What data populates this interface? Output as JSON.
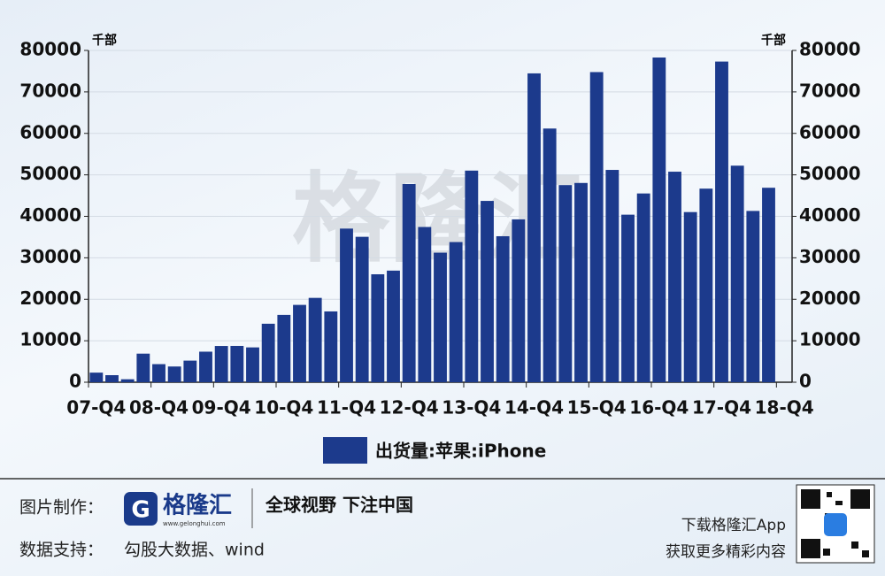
{
  "chart_data": {
    "type": "bar",
    "watermark": "格隆汇",
    "unit_left": "千部",
    "unit_right": "千部",
    "categories": [
      "07-Q4",
      null,
      null,
      null,
      "08-Q4",
      null,
      null,
      null,
      "09-Q4",
      null,
      null,
      null,
      "10-Q4",
      null,
      null,
      null,
      "11-Q4",
      null,
      null,
      null,
      "12-Q4",
      null,
      null,
      null,
      "13-Q4",
      null,
      null,
      null,
      "14-Q4",
      null,
      null,
      null,
      "15-Q4",
      null,
      null,
      null,
      "16-Q4",
      null,
      null,
      null,
      "17-Q4",
      null,
      null,
      null,
      "18-Q4"
    ],
    "series": [
      {
        "name": "出货量:苹果:iPhone",
        "color": "#1c3a8c",
        "values": [
          2315,
          1703,
          717,
          6892,
          4363,
          3793,
          5208,
          7367,
          8737,
          8752,
          8398,
          14102,
          16235,
          18647,
          20338,
          17073,
          37044,
          35064,
          26028,
          26910,
          47789,
          37430,
          31241,
          33797,
          51025,
          43719,
          35203,
          39272,
          74468,
          61170,
          47534,
          48046,
          74779,
          51193,
          40399,
          45513,
          78290,
          50763,
          41026,
          46677,
          77316,
          52217,
          41300,
          46889,
          null
        ]
      }
    ],
    "ylim": [
      0,
      80000
    ],
    "yticks": [
      0,
      10000,
      20000,
      30000,
      40000,
      50000,
      60000,
      70000,
      80000
    ],
    "y2lim": [
      0,
      80000
    ],
    "y2ticks": [
      0,
      10000,
      20000,
      30000,
      40000,
      50000,
      60000,
      70000,
      80000
    ]
  },
  "footer": {
    "made_by_label": "图片制作：",
    "logo": "格隆汇",
    "logo_url": "www.gelonghui.com",
    "slogan": "全球视野 下注中国",
    "source_label": "数据支持：",
    "source": "勾股大数据、wind",
    "download": "下载格隆汇App",
    "more": "获取更多精彩内容"
  }
}
